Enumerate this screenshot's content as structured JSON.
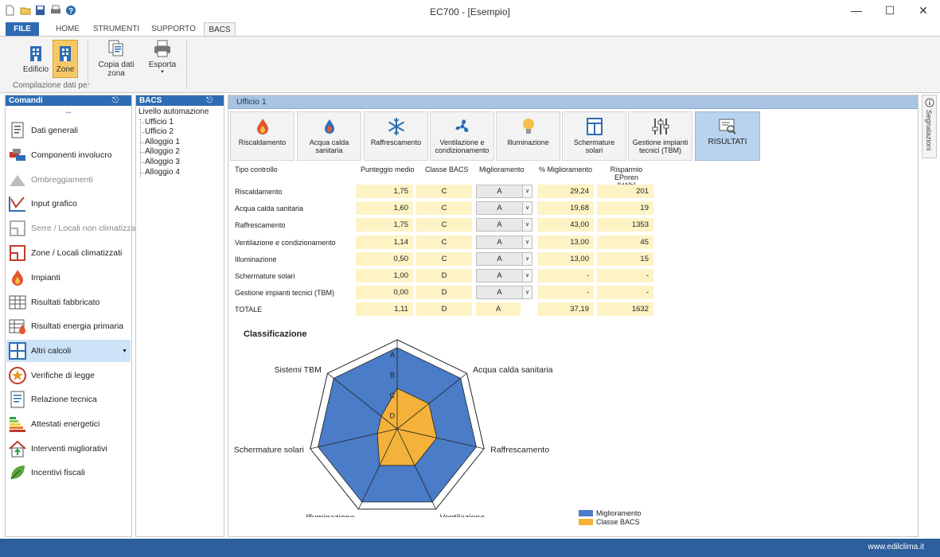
{
  "app": {
    "title": "EC700 - [Esempio]"
  },
  "ribbon": {
    "tabs": [
      "FILE",
      "HOME",
      "STRUMENTI",
      "SUPPORTO",
      "BACS"
    ],
    "buttons": {
      "edificio": "Edificio",
      "zone": "Zone",
      "copia_l1": "Copia dati",
      "copia_l2": "zona",
      "esporta": "Esporta"
    },
    "group_label": "Compilazione dati per"
  },
  "left_panel": {
    "title": "Comandi",
    "items": [
      "Dati generali",
      "Componenti involucro",
      "Ombreggiamenti",
      "Input grafico",
      "Serre / Locali non climatizzati",
      "Zone / Locali climatizzati",
      "Impianti",
      "Risultati fabbricato",
      "Risultati energia primaria",
      "Altri calcoli",
      "Verifiche di legge",
      "Relazione tecnica",
      "Attestati energetici",
      "Interventi migliorativi",
      "Incentivi fiscali"
    ]
  },
  "tree_panel": {
    "title": "BACS",
    "root": "Livello automazione",
    "children": [
      "Ufficio 1",
      "Ufficio 2",
      "Alloggio 1",
      "Alloggio 2",
      "Alloggio 3",
      "Alloggio 4"
    ]
  },
  "main": {
    "title": "Ufficio 1",
    "tabs": [
      {
        "l1": "Riscaldamento",
        "l2": ""
      },
      {
        "l1": "Acqua calda",
        "l2": "sanitaria"
      },
      {
        "l1": "Raffrescamento",
        "l2": ""
      },
      {
        "l1": "Ventilazione e",
        "l2": "condizionamento"
      },
      {
        "l1": "Illuminazione",
        "l2": ""
      },
      {
        "l1": "Schermature",
        "l2": "solari"
      },
      {
        "l1": "Gestione impianti",
        "l2": "tecnici (TBM)"
      },
      {
        "l1": "RISULTATI",
        "l2": ""
      }
    ],
    "table": {
      "headers": {
        "tipo": "Tipo controllo",
        "punteggio": "Punteggio medio",
        "classe": "Classe BACS",
        "miglioramento": "Miglioramento",
        "perc": "% Miglioramento",
        "risparmio_l1": "Risparmio EPnren",
        "risparmio_l2": "[kWh]"
      },
      "rows": [
        {
          "name": "Riscaldamento",
          "punteggio": "1,75",
          "classe": "C",
          "miglioramento": "A",
          "perc": "29,24",
          "risparmio": "201"
        },
        {
          "name": "Acqua calda sanitaria",
          "punteggio": "1,60",
          "classe": "C",
          "miglioramento": "A",
          "perc": "19,68",
          "risparmio": "19"
        },
        {
          "name": "Raffrescamento",
          "punteggio": "1,75",
          "classe": "C",
          "miglioramento": "A",
          "perc": "43,00",
          "risparmio": "1353"
        },
        {
          "name": "Ventilazione e condizionamento",
          "punteggio": "1,14",
          "classe": "C",
          "miglioramento": "A",
          "perc": "13,00",
          "risparmio": "45"
        },
        {
          "name": "Illuminazione",
          "punteggio": "0,50",
          "classe": "C",
          "miglioramento": "A",
          "perc": "13,00",
          "risparmio": "15"
        },
        {
          "name": "Schermature solari",
          "punteggio": "1,00",
          "classe": "D",
          "miglioramento": "A",
          "perc": "-",
          "risparmio": "-"
        },
        {
          "name": "Gestione impianti tecnici (TBM)",
          "punteggio": "0,00",
          "classe": "D",
          "miglioramento": "A",
          "perc": "-",
          "risparmio": "-"
        }
      ],
      "total": {
        "name": "TOTALE",
        "punteggio": "1,11",
        "classe": "D",
        "miglioramento": "A",
        "perc": "37,19",
        "risparmio": "1632"
      }
    }
  },
  "chart_data": {
    "type": "radar",
    "title": "Classificazione",
    "axes": [
      "Riscaldamento",
      "Acqua calda sanitaria",
      "Raffrescamento",
      "Ventilazione",
      "Illuminazione",
      "Schermature solari",
      "Sistemi TBM"
    ],
    "scale_labels": [
      "A",
      "B",
      "C",
      "D"
    ],
    "scale": {
      "D": 1,
      "C": 2,
      "B": 3,
      "A": 4
    },
    "series": [
      {
        "name": "Miglioramento",
        "color": "#4a7cc7",
        "values": [
          "A",
          "A",
          "A",
          "A",
          "A",
          "A",
          "A"
        ]
      },
      {
        "name": "Classe BACS",
        "color": "#f4b23a",
        "values": [
          "C",
          "C",
          "C",
          "C",
          "C",
          "D",
          "D"
        ]
      }
    ]
  },
  "side_tab": {
    "label": "Segnalazioni"
  },
  "status": {
    "url": "www.edilclima.it"
  }
}
